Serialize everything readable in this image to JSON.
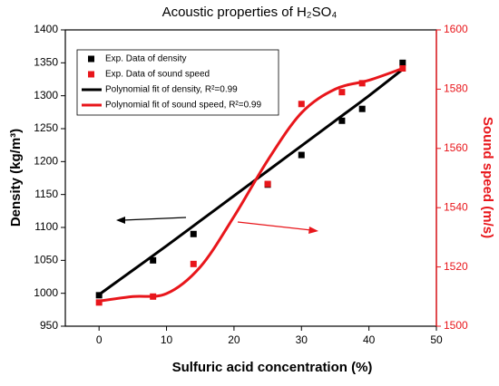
{
  "chart_data": {
    "type": "scatter",
    "title": "Acoustic properties of H₂SO₄",
    "x_label": "Sulfuric acid concentration (%)",
    "y_label": "Density (kg/m³)",
    "y2_label": "Sound speed (m/s)",
    "xlim": [
      -5,
      50
    ],
    "xticks": [
      0,
      10,
      20,
      30,
      40,
      50
    ],
    "ylim": [
      950,
      1400
    ],
    "yticks": [
      950,
      1000,
      1050,
      1100,
      1150,
      1200,
      1250,
      1300,
      1350,
      1400
    ],
    "y2lim": [
      1500,
      1600
    ],
    "y2ticks": [
      1500,
      1520,
      1540,
      1560,
      1580,
      1600
    ],
    "y2_color": "#e8161b",
    "series": [
      {
        "name": "Exp. Data of density",
        "type": "scatter",
        "color": "#000000",
        "x": [
          0,
          8,
          14,
          25,
          30,
          36,
          39,
          45
        ],
        "values": [
          997,
          1050,
          1090,
          1165,
          1210,
          1262,
          1280,
          1350
        ]
      },
      {
        "name": "Exp. Data of sound speed",
        "type": "scatter",
        "color": "#e8161b",
        "axis": "y2",
        "x": [
          0,
          8,
          14,
          25,
          30,
          36,
          39,
          45
        ],
        "values": [
          1508,
          1510,
          1521,
          1548,
          1575,
          1579,
          1582,
          1587
        ]
      },
      {
        "name": "Polynomial fit of density, R²=0.99",
        "type": "line",
        "color": "#000000",
        "x": [
          0,
          5,
          10,
          15,
          20,
          25,
          30,
          35,
          40,
          45
        ],
        "values": [
          998,
          1035,
          1072,
          1110,
          1148,
          1186,
          1224,
          1262,
          1300,
          1340
        ]
      },
      {
        "name": "Polynomial fit of sound speed, R²=0.99",
        "type": "line",
        "color": "#e8161b",
        "axis": "y2",
        "x": [
          0,
          5,
          10,
          15,
          20,
          25,
          30,
          35,
          40,
          45
        ],
        "values": [
          1508.5,
          1510,
          1511,
          1520,
          1537,
          1556,
          1572,
          1580,
          1583,
          1587
        ]
      }
    ]
  }
}
